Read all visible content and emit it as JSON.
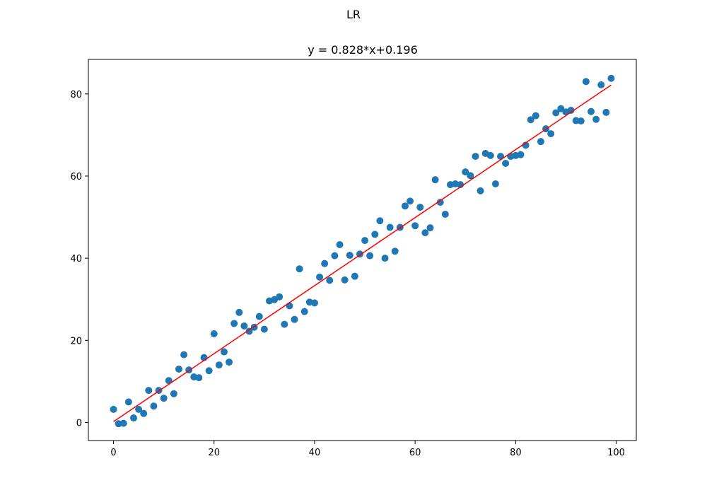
{
  "figure": {
    "suptitle": "LR"
  },
  "chart_data": {
    "type": "scatter",
    "title": "y = 0.828*x+0.196",
    "xlabel": "",
    "ylabel": "",
    "xlim": [
      -5,
      104
    ],
    "ylim": [
      -4.4,
      88.4
    ],
    "xticks": [
      0,
      20,
      40,
      60,
      80,
      100
    ],
    "yticks": [
      0,
      20,
      40,
      60,
      80
    ],
    "grid": false,
    "colors": {
      "points": "#1f77b4",
      "fit_line": "#ff0000"
    },
    "series": [
      {
        "type": "scatter",
        "x": [
          0,
          1,
          2,
          3,
          4,
          5,
          6,
          7,
          8,
          9,
          10,
          11,
          12,
          13,
          14,
          15,
          16,
          17,
          18,
          19,
          20,
          21,
          22,
          23,
          24,
          25,
          26,
          27,
          28,
          29,
          30,
          31,
          32,
          33,
          34,
          35,
          36,
          37,
          38,
          39,
          40,
          41,
          42,
          43,
          44,
          45,
          46,
          47,
          48,
          49,
          50,
          51,
          52,
          53,
          54,
          55,
          56,
          57,
          58,
          59,
          60,
          61,
          62,
          63,
          64,
          65,
          66,
          67,
          68,
          69,
          70,
          71,
          72,
          73,
          74,
          75,
          76,
          77,
          78,
          79,
          80,
          81,
          82,
          83,
          84,
          85,
          86,
          87,
          88,
          89,
          90,
          91,
          92,
          93,
          94,
          95,
          96,
          97,
          98,
          99
        ],
        "y": [
          3.2,
          -0.3,
          -0.2,
          5.0,
          1.1,
          3.2,
          2.2,
          7.8,
          4.0,
          7.8,
          5.9,
          10.2,
          7.0,
          13.0,
          16.5,
          12.8,
          11.1,
          10.9,
          15.8,
          12.6,
          21.6,
          14.0,
          17.2,
          14.7,
          24.1,
          26.8,
          23.5,
          22.2,
          23.2,
          25.8,
          22.7,
          29.6,
          29.9,
          30.6,
          23.9,
          28.4,
          25.1,
          37.4,
          27.0,
          29.3,
          29.1,
          35.4,
          38.7,
          34.6,
          40.6,
          43.3,
          34.7,
          40.7,
          35.6,
          41.0,
          44.3,
          40.6,
          45.8,
          49.1,
          40.0,
          47.5,
          41.7,
          47.5,
          52.7,
          53.9,
          47.9,
          52.4,
          46.2,
          47.4,
          59.1,
          53.6,
          50.7,
          57.9,
          58.1,
          57.9,
          61.0,
          60.1,
          64.8,
          56.4,
          65.5,
          65.0,
          58.1,
          64.8,
          63.1,
          64.8,
          65.0,
          65.2,
          67.5,
          73.7,
          74.7,
          68.4,
          71.5,
          70.3,
          75.4,
          76.4,
          75.6,
          76.0,
          73.5,
          73.4,
          83.0,
          75.7,
          73.8,
          82.2,
          75.5,
          83.8
        ]
      },
      {
        "type": "line",
        "slope": 0.828,
        "intercept": 0.196,
        "x": [
          0,
          99
        ]
      }
    ]
  }
}
